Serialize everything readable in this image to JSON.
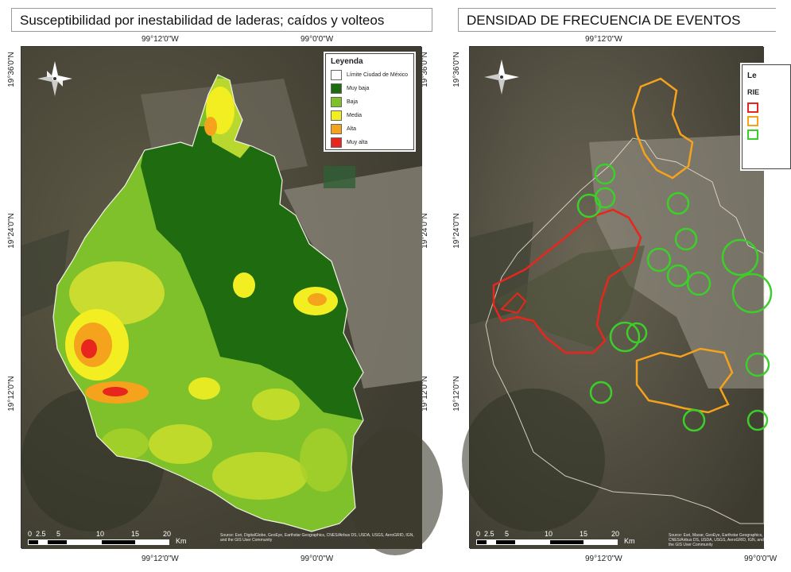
{
  "left_panel": {
    "title": "Susceptibilidad por inestabilidad de laderas; caídos y volteos",
    "top_ticks": [
      "99°12'0\"W",
      "99°0'0\"W"
    ],
    "bottom_ticks": [
      "99°12'0\"W",
      "99°0'0\"W"
    ],
    "left_ticks": [
      "19°36'0\"N",
      "19°24'0\"N",
      "19°12'0\"N"
    ],
    "right_ticks": [
      "19°36'0\"N",
      "19°24'0\"N",
      "19°12'0\"N"
    ],
    "legend": {
      "title": "Leyenda",
      "items": [
        {
          "label": "Límite Ciudad de México",
          "color": "#ffffff"
        },
        {
          "label": "Muy baja",
          "color": "#1e6b10"
        },
        {
          "label": "Baja",
          "color": "#7fc12a"
        },
        {
          "label": "Media",
          "color": "#f2ee22"
        },
        {
          "label": "Alta",
          "color": "#f5a21c"
        },
        {
          "label": "Muy alta",
          "color": "#e8261d"
        }
      ]
    },
    "scale": {
      "labels": [
        "0",
        "2.5",
        "5",
        "10",
        "15",
        "20"
      ],
      "unit": "Km"
    },
    "credits": "Source: Esri, DigitalGlobe, GeoEye, Earthstar Geographics, CNES/Airbus DS, USDA, USGS, AeroGRID, IGN, and the GIS User Community"
  },
  "right_panel": {
    "title": "DENSIDAD DE FRECUENCIA DE EVENTOS",
    "top_ticks": [
      "99°12'0\"W"
    ],
    "bottom_ticks": [
      "99°12'0\"W",
      "99°0'0\"W"
    ],
    "left_ticks": [
      "19°36'0\"N",
      "19°24'0\"N",
      "19°12'0\"N"
    ],
    "legend": {
      "title_partial": "Le",
      "subtitle_partial": "RIE",
      "swatch_colors": [
        "#e8261d",
        "#f5a21c",
        "#3ccf2a"
      ]
    },
    "scale": {
      "labels": [
        "0",
        "2.5",
        "5",
        "10",
        "15",
        "20"
      ],
      "unit": "Km"
    },
    "credits": "Source: Esri, Maxar, GeoEye, Earthstar Geographics, CNES/Airbus DS, USDA, USGS, AeroGRID, IGN, and the GIS User Community"
  },
  "colors": {
    "risk_high": "#e8261d",
    "risk_medium": "#f5a21c",
    "risk_low": "#3ccf2a"
  }
}
